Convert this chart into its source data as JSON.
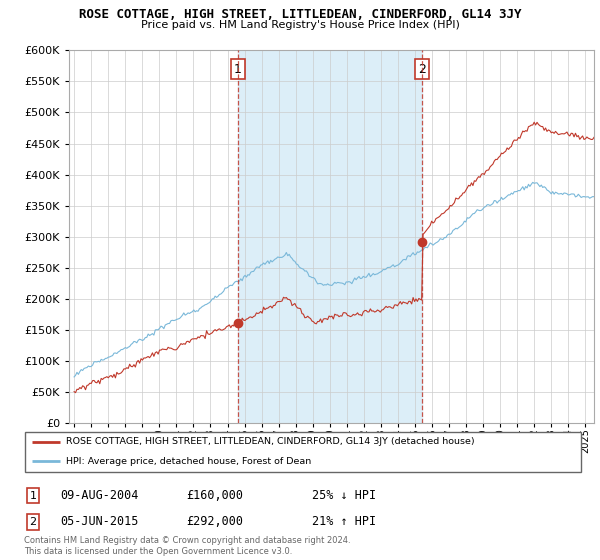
{
  "title": "ROSE COTTAGE, HIGH STREET, LITTLEDEAN, CINDERFORD, GL14 3JY",
  "subtitle": "Price paid vs. HM Land Registry's House Price Index (HPI)",
  "legend_line1": "ROSE COTTAGE, HIGH STREET, LITTLEDEAN, CINDERFORD, GL14 3JY (detached house)",
  "legend_line2": "HPI: Average price, detached house, Forest of Dean",
  "annotation1_label": "1",
  "annotation1_date": "09-AUG-2004",
  "annotation1_price": "£160,000",
  "annotation1_hpi": "25% ↓ HPI",
  "annotation2_label": "2",
  "annotation2_date": "05-JUN-2015",
  "annotation2_price": "£292,000",
  "annotation2_hpi": "21% ↑ HPI",
  "footer": "Contains HM Land Registry data © Crown copyright and database right 2024.\nThis data is licensed under the Open Government Licence v3.0.",
  "hpi_color": "#7ab8d9",
  "price_color": "#c0392b",
  "vline_color": "#c0392b",
  "shade_color": "#dceef8",
  "ylim": [
    0,
    600000
  ],
  "yticks": [
    0,
    50000,
    100000,
    150000,
    200000,
    250000,
    300000,
    350000,
    400000,
    450000,
    500000,
    550000,
    600000
  ],
  "sale1_x": 2004.6,
  "sale1_y": 160000,
  "sale2_x": 2015.43,
  "sale2_y": 292000,
  "xmin": 1994.7,
  "xmax": 2025.5
}
